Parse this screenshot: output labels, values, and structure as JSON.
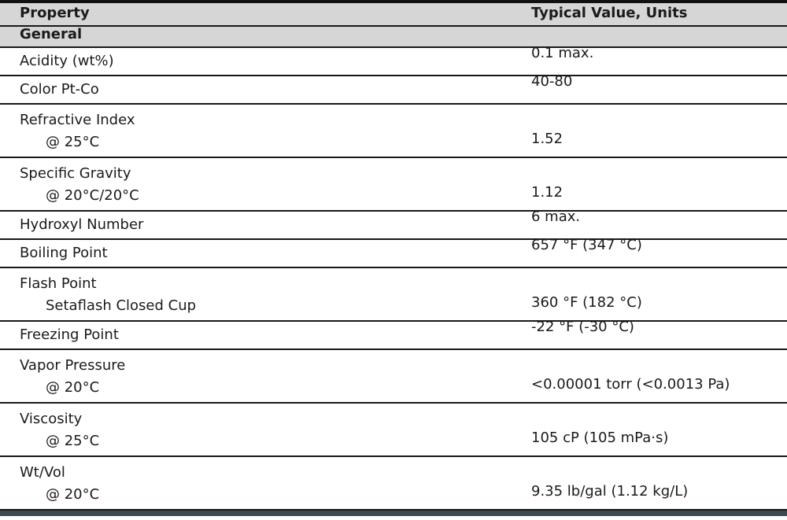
{
  "table": {
    "columns": [
      {
        "label": "Property"
      },
      {
        "label": "Typical Value, Units"
      }
    ],
    "section_header": "General",
    "rows": [
      {
        "property": "Acidity (wt%)",
        "condition": "",
        "value": "0.1 max."
      },
      {
        "property": "Color Pt-Co",
        "condition": "",
        "value": "40-80"
      },
      {
        "property": "Refractive Index",
        "condition": "@ 25°C",
        "value": "1.52"
      },
      {
        "property": "Specific Gravity",
        "condition": "@ 20°C/20°C",
        "value": "1.12"
      },
      {
        "property": "Hydroxyl Number",
        "condition": "",
        "value": "6 max."
      },
      {
        "property": "Boiling Point",
        "condition": "",
        "value": "657 °F (347 °C)"
      },
      {
        "property": "Flash Point",
        "condition": "Setaflash Closed Cup",
        "value": "360 °F (182 °C)"
      },
      {
        "property": "Freezing Point",
        "condition": "",
        "value": "-22 °F (-30 °C)"
      },
      {
        "property": "Vapor Pressure",
        "condition": "@ 20°C",
        "value": "<0.00001 torr (<0.0013 Pa)"
      },
      {
        "property": "Viscosity",
        "condition": "@ 25°C",
        "value": "105 cP (105 mPa·s)"
      },
      {
        "property": "Wt/Vol",
        "condition": "@ 20°C",
        "value": "9.35 lb/gal (1.12 kg/L)"
      }
    ],
    "colors": {
      "header_bg": "#d6d6d6",
      "rule": "#181818",
      "bottom_bar": "#3a4a50"
    }
  }
}
